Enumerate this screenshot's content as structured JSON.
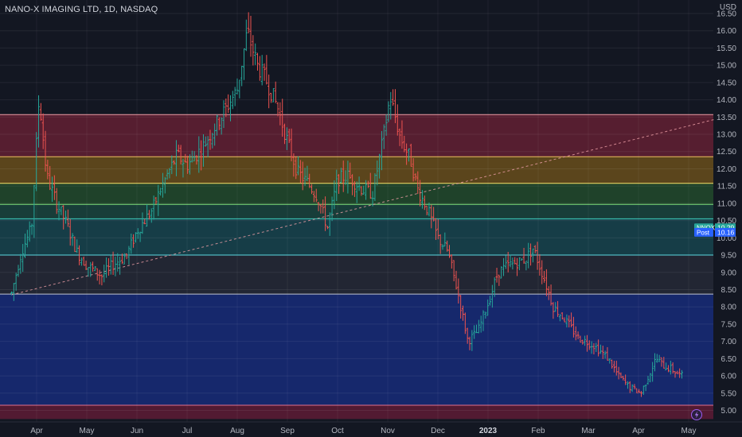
{
  "header": {
    "symbol_line": "NANO-X IMAGING LTD, 1D, NASDAQ"
  },
  "axis": {
    "currency": "USD"
  },
  "badges": {
    "last": {
      "label": "NNOX",
      "value": "10.29",
      "color": "#26a69a"
    },
    "post": {
      "label": "Post",
      "value": "10.16",
      "color": "#2962ff"
    }
  },
  "icons": {
    "bottom_right": "lightning-icon"
  },
  "chart_data": {
    "type": "candlestick",
    "title": "NANO-X IMAGING LTD, 1D, NASDAQ",
    "ylim": [
      4.75,
      16.75
    ],
    "y_ticks": [
      "5.00",
      "5.50",
      "6.00",
      "6.50",
      "7.00",
      "7.50",
      "8.00",
      "8.50",
      "9.00",
      "9.50",
      "10.00",
      "10.50",
      "11.00",
      "11.50",
      "12.00",
      "12.50",
      "13.00",
      "13.50",
      "14.00",
      "14.50",
      "15.00",
      "15.50",
      "16.00",
      "16.50"
    ],
    "x_ticks": [
      {
        "label": "Apr",
        "month": 3.5
      },
      {
        "label": "May",
        "month": 4.5
      },
      {
        "label": "Jun",
        "month": 5.5
      },
      {
        "label": "Jul",
        "month": 6.5
      },
      {
        "label": "Aug",
        "month": 7.5
      },
      {
        "label": "Sep",
        "month": 8.5
      },
      {
        "label": "Oct",
        "month": 9.5
      },
      {
        "label": "Nov",
        "month": 10.5
      },
      {
        "label": "Dec",
        "month": 11.5
      },
      {
        "label": "2023",
        "month": 12.5,
        "bold": true
      },
      {
        "label": "Feb",
        "month": 13.5
      },
      {
        "label": "Mar",
        "month": 14.5
      },
      {
        "label": "Apr",
        "month": 15.5
      },
      {
        "label": "May",
        "month": 16.5
      }
    ],
    "fib_levels": [
      {
        "price": 13.57,
        "fill": "rgba(178,40,70,0.42)",
        "line": "#f0a0a8"
      },
      {
        "price": 12.35,
        "fill": "rgba(200,140,20,0.40)",
        "line": "#f0c060"
      },
      {
        "price": 11.58,
        "fill": "rgba(60,160,60,0.32)",
        "line": "#f7e36b"
      },
      {
        "price": 10.97,
        "fill": "rgba(40,160,120,0.28)",
        "line": "#7ee07a"
      },
      {
        "price": 10.55,
        "fill": "rgba(30,150,160,0.30)",
        "line": "#3fd0c0"
      },
      {
        "price": 9.5,
        "fill": "rgba(120,120,140,0.16)",
        "line": "#4dd7e0"
      },
      {
        "price": 8.37,
        "fill": "rgba(25,55,170,0.55)",
        "line": "#c0c4d0"
      },
      {
        "price": 5.15,
        "fill": "rgba(160,30,70,0.45)",
        "line": "#e0708c"
      }
    ],
    "trendline": {
      "from": {
        "month": 3.0,
        "price": 8.35
      },
      "to": {
        "month": 17.4,
        "price": 13.57
      }
    },
    "price_anchors": [
      [
        3.0,
        8.4
      ],
      [
        3.2,
        9.6
      ],
      [
        3.4,
        10.3
      ],
      [
        3.55,
        14.1
      ],
      [
        3.7,
        11.8
      ],
      [
        3.9,
        11.0
      ],
      [
        4.1,
        10.4
      ],
      [
        4.3,
        9.6
      ],
      [
        4.5,
        9.2
      ],
      [
        4.8,
        8.9
      ],
      [
        5.0,
        9.2
      ],
      [
        5.3,
        9.5
      ],
      [
        5.5,
        10.2
      ],
      [
        5.8,
        10.8
      ],
      [
        6.0,
        11.5
      ],
      [
        6.3,
        12.4
      ],
      [
        6.5,
        12.1
      ],
      [
        6.8,
        12.6
      ],
      [
        7.0,
        13.1
      ],
      [
        7.3,
        13.8
      ],
      [
        7.5,
        14.3
      ],
      [
        7.7,
        16.0
      ],
      [
        7.9,
        15.0
      ],
      [
        8.1,
        14.5
      ],
      [
        8.3,
        13.8
      ],
      [
        8.5,
        12.8
      ],
      [
        8.7,
        11.9
      ],
      [
        8.9,
        11.6
      ],
      [
        9.1,
        11.2
      ],
      [
        9.3,
        10.3
      ],
      [
        9.5,
        11.7
      ],
      [
        9.7,
        11.8
      ],
      [
        10.0,
        11.4
      ],
      [
        10.2,
        11.3
      ],
      [
        10.4,
        12.8
      ],
      [
        10.55,
        14.1
      ],
      [
        10.75,
        12.9
      ],
      [
        10.95,
        12.3
      ],
      [
        11.1,
        11.4
      ],
      [
        11.3,
        10.8
      ],
      [
        11.5,
        10.0
      ],
      [
        11.7,
        9.6
      ],
      [
        11.9,
        8.4
      ],
      [
        12.1,
        7.0
      ],
      [
        12.3,
        7.3
      ],
      [
        12.5,
        8.1
      ],
      [
        12.7,
        9.0
      ],
      [
        12.9,
        9.2
      ],
      [
        13.1,
        9.3
      ],
      [
        13.25,
        9.4
      ],
      [
        13.4,
        9.7
      ],
      [
        13.6,
        8.9
      ],
      [
        13.8,
        8.0
      ],
      [
        14.0,
        7.7
      ],
      [
        14.3,
        7.1
      ],
      [
        14.6,
        6.9
      ],
      [
        14.9,
        6.5
      ],
      [
        15.1,
        6.0
      ],
      [
        15.3,
        5.7
      ],
      [
        15.55,
        5.5
      ],
      [
        15.7,
        6.0
      ],
      [
        15.85,
        6.5
      ],
      [
        16.0,
        6.3
      ],
      [
        16.15,
        6.2
      ],
      [
        16.35,
        6.0
      ]
    ],
    "last_price": 10.29,
    "post_price": 10.16
  }
}
